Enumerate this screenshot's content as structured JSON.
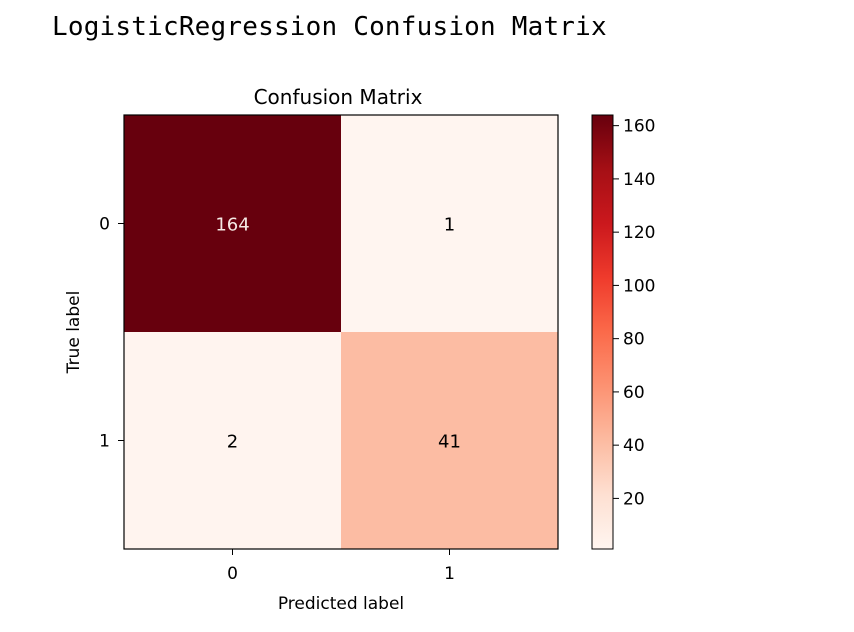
{
  "heading": "LogisticRegression Confusion Matrix",
  "chart_data": {
    "type": "heatmap",
    "title": "Confusion Matrix",
    "xlabel": "Predicted label",
    "ylabel": "True label",
    "x_categories": [
      "0",
      "1"
    ],
    "y_categories": [
      "0",
      "1"
    ],
    "matrix": [
      [
        164,
        1
      ],
      [
        2,
        41
      ]
    ],
    "colormap": "Reds",
    "colorbar": {
      "range": [
        1,
        164
      ],
      "ticks": [
        20,
        40,
        60,
        80,
        100,
        120,
        140,
        160
      ],
      "tick_labels": [
        "20",
        "40",
        "60",
        "80",
        "100",
        "120",
        "140",
        "160"
      ]
    },
    "grid": false,
    "legend": "none"
  }
}
